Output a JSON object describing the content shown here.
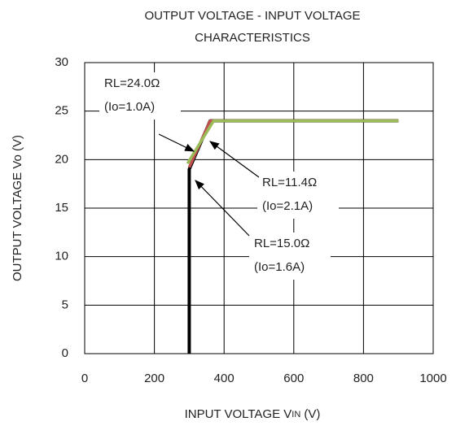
{
  "chart_data": {
    "type": "line",
    "title": [
      "OUTPUT VOLTAGE - INPUT VOLTAGE",
      "CHARACTERISTICS"
    ],
    "xlabel": {
      "text": "INPUT VOLTAGE V",
      "sub": "IN",
      "suffix": " (V)"
    },
    "ylabel": "OUTPUT VOLTAGE Vo (V)",
    "xlim": [
      0,
      1000
    ],
    "xticks": [
      0,
      200,
      400,
      600,
      800,
      1000
    ],
    "ylim": [
      0,
      30
    ],
    "yticks": [
      0,
      5,
      10,
      15,
      20,
      25,
      30
    ],
    "grid": true,
    "series": [
      {
        "color": "#000000",
        "x": [
          300,
          300,
          360,
          900
        ],
        "values": [
          0,
          19,
          24,
          24
        ]
      },
      {
        "color": "#c0504d",
        "x": [
          300,
          360,
          900
        ],
        "values": [
          19.2,
          24,
          24
        ]
      },
      {
        "color": "#9bbb59",
        "x": [
          295,
          370,
          900
        ],
        "values": [
          19.6,
          24,
          24
        ]
      }
    ],
    "annotations": [
      [
        "RL=24.0Ω",
        "(Io=1.0A)"
      ],
      [
        "RL=11.4Ω",
        "(Io=2.1A)"
      ],
      [
        "RL=15.0Ω",
        "(Io=1.6A)"
      ]
    ]
  }
}
